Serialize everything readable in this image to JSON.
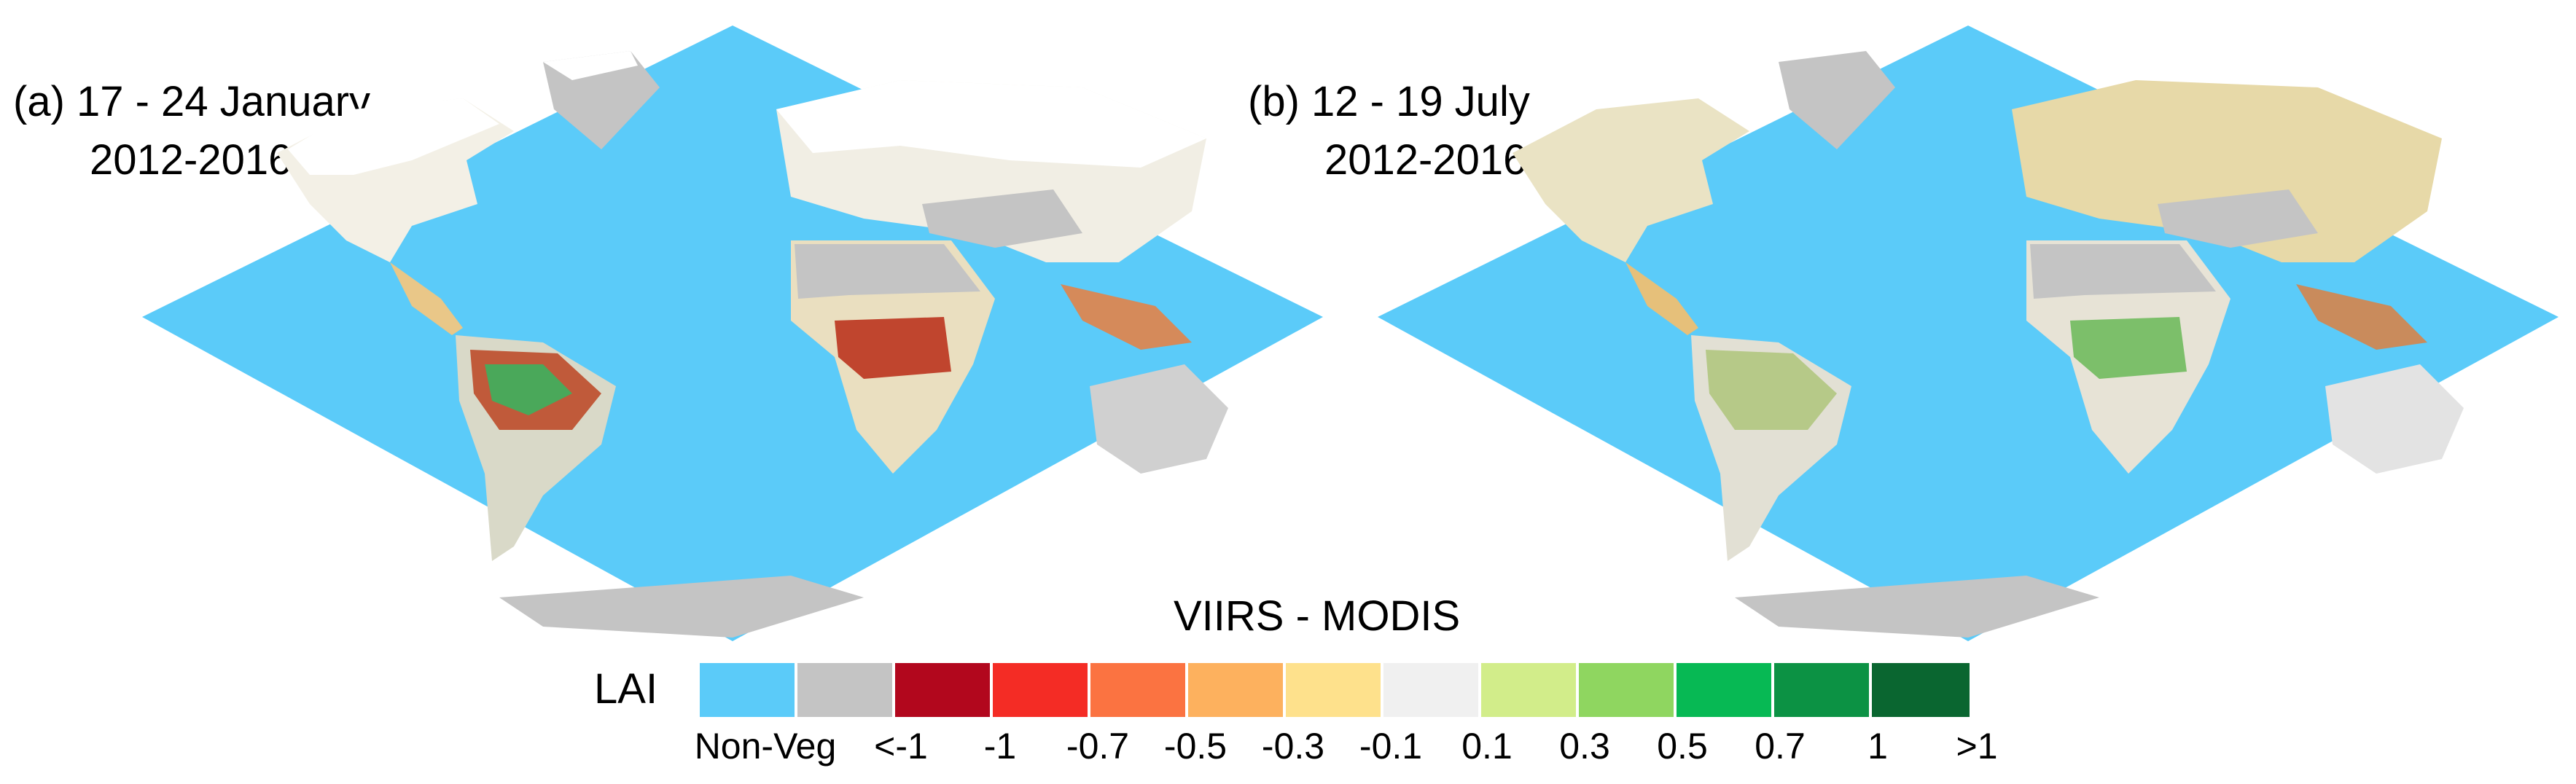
{
  "panels": [
    {
      "id": "a",
      "title_line1": "(a) 17 - 24 January",
      "title_line2": "2012-2016"
    },
    {
      "id": "b",
      "title_line1": "(b) 12 - 19 July",
      "title_line2": "2012-2016"
    }
  ],
  "legend": {
    "title": "VIIRS - MODIS",
    "variable": "LAI",
    "colors": [
      "#5bcbf9",
      "#c4c4c4",
      "#b2071d",
      "#f42c25",
      "#fb7341",
      "#fdb15e",
      "#fee18c",
      "#f0f0f0",
      "#d2ed8a",
      "#8fd660",
      "#07b954",
      "#0c9244",
      "#0a6630"
    ],
    "tick_labels": [
      "Non-Veg",
      "<-1",
      "-1",
      "-0.7",
      "-0.5",
      "-0.3",
      "-0.1",
      "0.1",
      "0.3",
      "0.5",
      "0.7",
      "1",
      ">1"
    ]
  },
  "colors": {
    "ocean": "#5bcbf9",
    "barren": "#c4c4c4",
    "snow": "#ffffff",
    "land_neutral": "#efefef"
  }
}
